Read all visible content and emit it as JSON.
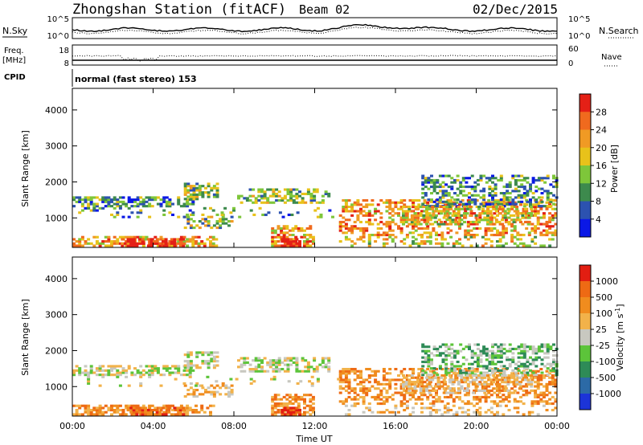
{
  "header": {
    "station": "Zhongshan Station (fitACF)",
    "beam": "Beam 02",
    "date": "02/Dec/2015"
  },
  "panels": {
    "sky": {
      "left_label": "N.Sky",
      "right_label": "N.Search",
      "left_ticks": [
        "10^5",
        "10^0"
      ],
      "right_ticks": [
        "10^5",
        "10^0"
      ]
    },
    "freq": {
      "left_label_top": "Freq.",
      "left_label_bottom": "[MHz]",
      "right_label": "Nave",
      "left_ticks": [
        "18",
        "8"
      ],
      "right_ticks": [
        "60",
        "0"
      ]
    },
    "cpid": {
      "label": "CPID",
      "text": "normal (fast stereo) 153"
    }
  },
  "chart_data": [
    {
      "type": "heatmap",
      "name": "power",
      "ylabel": "Slant Range [km]",
      "ylim": [
        180,
        4600
      ],
      "y_ticks": [
        "4000",
        "3000",
        "2000",
        "1000"
      ],
      "x_ticks": [
        "00:00",
        "04:00",
        "08:00",
        "12:00",
        "16:00",
        "20:00",
        "00:00"
      ],
      "colorbar": {
        "label": "Power [dB]",
        "ticks": [
          "28",
          "24",
          "20",
          "16",
          "12",
          "8",
          "4"
        ],
        "colors": [
          "#0a18e6",
          "#2c52b0",
          "#3d8a4d",
          "#7ec63a",
          "#e8c21a",
          "#f09a24",
          "#f06a1e",
          "#e42016"
        ]
      }
    },
    {
      "type": "heatmap",
      "name": "velocity",
      "ylabel": "Slant Range [km]",
      "xlabel": "Time UT",
      "ylim": [
        180,
        4600
      ],
      "y_ticks": [
        "4000",
        "3000",
        "2000",
        "1000"
      ],
      "x_ticks": [
        "00:00",
        "04:00",
        "08:00",
        "12:00",
        "16:00",
        "20:00",
        "00:00"
      ],
      "colorbar": {
        "label": "Velocity [m s^-1]",
        "ticks": [
          "1000",
          "500",
          "100",
          "25",
          "-25",
          "-100",
          "-500",
          "-1000"
        ],
        "colors": [
          "#1c34d8",
          "#2c6aa6",
          "#2e8b57",
          "#5cc43a",
          "#c8c8c0",
          "#f2b24a",
          "#f08c1e",
          "#ee6a14",
          "#e21e12"
        ]
      }
    }
  ]
}
